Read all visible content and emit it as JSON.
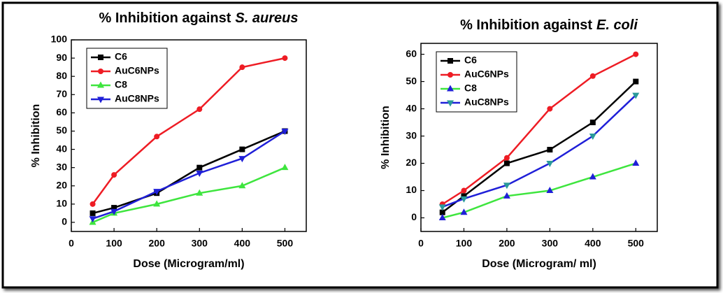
{
  "chart_data": [
    {
      "type": "line",
      "title": [
        "% Inhibition against",
        "S. aureus"
      ],
      "xlabel": "Dose (Microgram/ml)",
      "ylabel": "% Inhibition",
      "x": [
        50,
        100,
        200,
        300,
        400,
        500
      ],
      "xlim": [
        0,
        550
      ],
      "xticks": [
        0,
        100,
        200,
        300,
        400,
        500
      ],
      "ylim": [
        -5,
        100
      ],
      "yticks": [
        0,
        10,
        20,
        30,
        40,
        50,
        60,
        70,
        80,
        90,
        100
      ],
      "legend": "upper-left",
      "series": [
        {
          "name": "C6",
          "color": "#000000",
          "marker": "square",
          "values": [
            5,
            8,
            16,
            30,
            40,
            50
          ]
        },
        {
          "name": "AuC6NPs",
          "color": "#ee1c24",
          "marker": "circle",
          "values": [
            10,
            26,
            47,
            62,
            85,
            90
          ]
        },
        {
          "name": "C8",
          "color": "#3ee53e",
          "marker": "triangle-up",
          "values": [
            0,
            5,
            10,
            16,
            20,
            30
          ]
        },
        {
          "name": "AuC8NPs",
          "color": "#1f1fd8",
          "marker": "triangle-down",
          "values": [
            2,
            6,
            17,
            27,
            35,
            50
          ]
        }
      ]
    },
    {
      "type": "line",
      "title": [
        "% Inhibition against",
        "E. coli"
      ],
      "xlabel": "Dose (Microgram/ ml)",
      "ylabel": "% Inhibition",
      "x": [
        50,
        100,
        200,
        300,
        400,
        500
      ],
      "xlim": [
        0,
        550
      ],
      "xticks": [
        0,
        100,
        200,
        300,
        400,
        500
      ],
      "ylim": [
        -5,
        64
      ],
      "yticks": [
        0,
        10,
        20,
        30,
        40,
        50,
        60
      ],
      "legend": "upper-left",
      "series": [
        {
          "name": "C6",
          "color": "#000000",
          "marker": "square",
          "values": [
            2,
            8,
            20,
            25,
            35,
            50
          ]
        },
        {
          "name": "AuC6NPs",
          "color": "#ee1c24",
          "marker": "circle",
          "values": [
            5,
            10,
            22,
            40,
            52,
            60
          ]
        },
        {
          "name": "C8",
          "color": "#3ee53e",
          "marker": "triangle-up",
          "marker_color": "#1f1fd8",
          "values": [
            0,
            2,
            8,
            10,
            15,
            20
          ]
        },
        {
          "name": "AuC8NPs",
          "color": "#1f1fd8",
          "marker": "triangle-down",
          "marker_color": "#2a9a9a",
          "values": [
            4,
            7,
            12,
            20,
            30,
            45
          ]
        }
      ]
    }
  ]
}
